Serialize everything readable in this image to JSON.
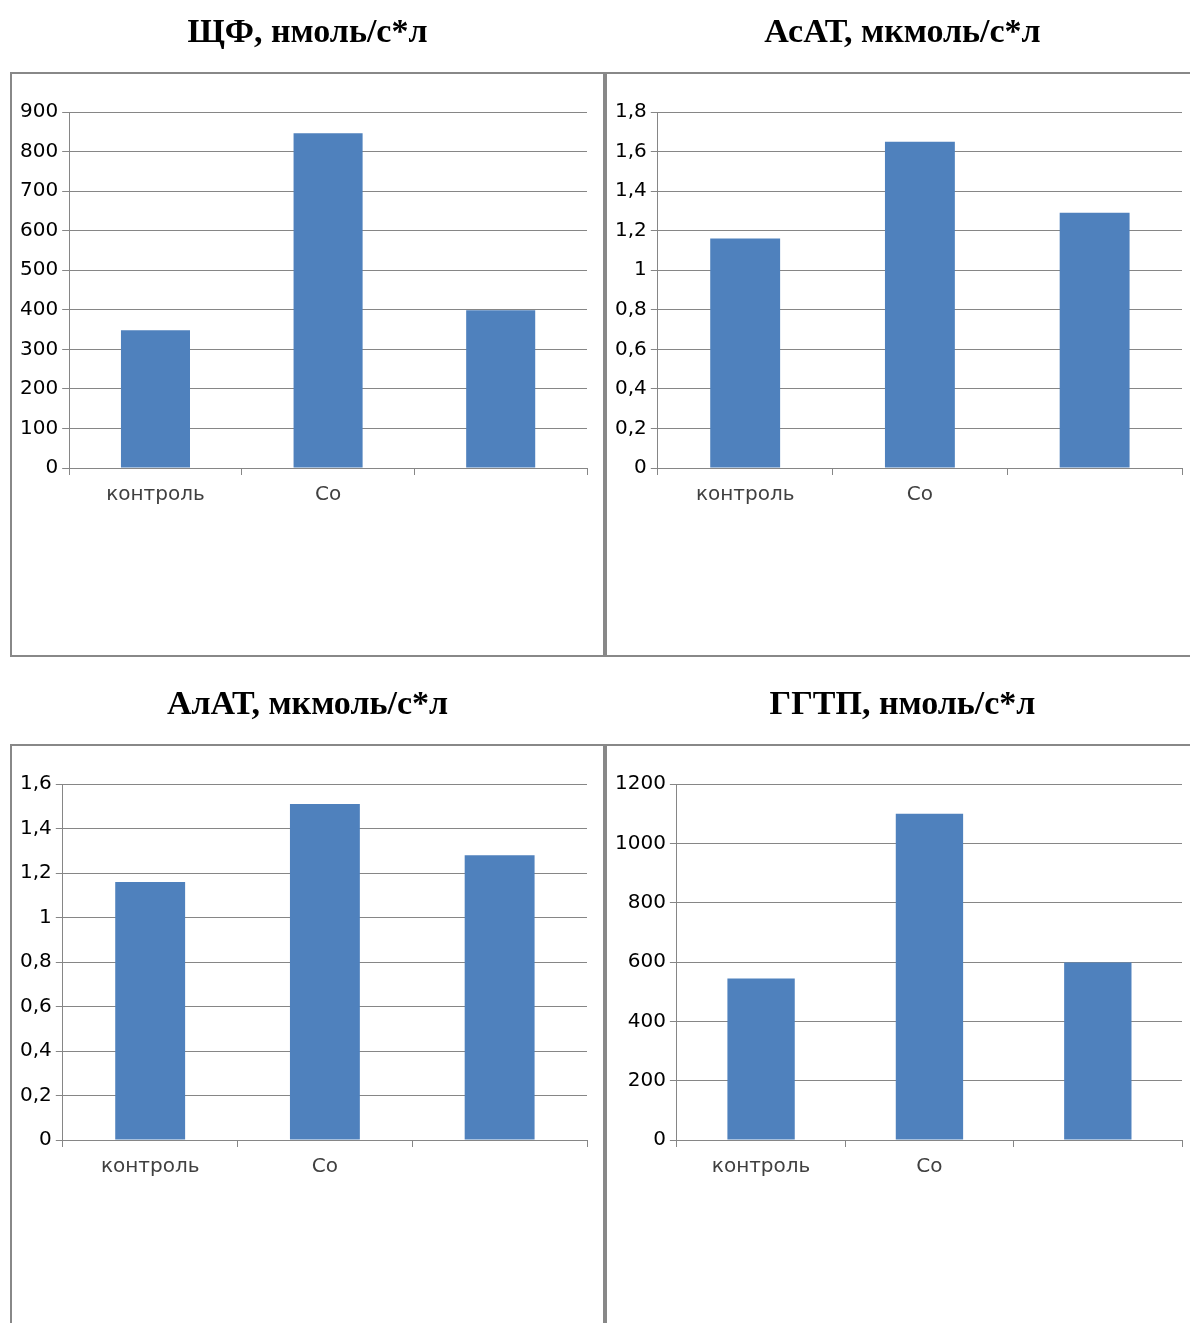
{
  "chart_data": [
    {
      "type": "bar",
      "title": "ЩФ, нмоль/с*л",
      "categories": [
        "контроль",
        "Со",
        null
      ],
      "values": [
        348,
        846,
        399
      ],
      "color": "#4f81bd",
      "ylim": [
        0,
        900
      ],
      "yticks": [
        0,
        100,
        200,
        300,
        400,
        500,
        600,
        700,
        800,
        900
      ],
      "grid": "y"
    },
    {
      "type": "bar",
      "title": "АсАТ, мкмоль/с*л",
      "categories": [
        "контроль",
        "Со",
        null
      ],
      "values": [
        1.16,
        1.65,
        1.29
      ],
      "color": "#4f81bd",
      "ylim": [
        0,
        1.8
      ],
      "yticks": [
        0,
        {
          "value": 0.2,
          "label": "0,2"
        },
        {
          "value": 0.4,
          "label": "0,4"
        },
        {
          "value": 0.6,
          "label": "0,6"
        },
        {
          "value": 0.8,
          "label": "0,8"
        },
        1,
        {
          "value": 1.2,
          "label": "1,2"
        },
        {
          "value": 1.4,
          "label": "1,4"
        },
        {
          "value": 1.6,
          "label": "1,6"
        },
        {
          "value": 1.8,
          "label": "1,8"
        }
      ],
      "grid": "y"
    },
    {
      "type": "bar",
      "title": "АлАТ, мкмоль/с*л",
      "categories": [
        "контроль",
        "Со",
        null
      ],
      "values": [
        1.16,
        1.51,
        1.28
      ],
      "color": "#4f81bd",
      "ylim": [
        0,
        1.6
      ],
      "yticks": [
        0,
        {
          "value": 0.2,
          "label": "0,2"
        },
        {
          "value": 0.4,
          "label": "0,4"
        },
        {
          "value": 0.6,
          "label": "0,6"
        },
        {
          "value": 0.8,
          "label": "0,8"
        },
        1,
        {
          "value": 1.2,
          "label": "1,2"
        },
        {
          "value": 1.4,
          "label": "1,4"
        },
        {
          "value": 1.6,
          "label": "1,6"
        }
      ],
      "grid": "y"
    },
    {
      "type": "bar",
      "title": "ГГТП, нмоль/с*л",
      "categories": [
        "контроль",
        "Со",
        null
      ],
      "values": [
        544,
        1100,
        598
      ],
      "color": "#4f81bd",
      "ylim": [
        0,
        1200
      ],
      "yticks": [
        0,
        200,
        400,
        600,
        800,
        1000,
        1200
      ],
      "grid": "y"
    }
  ]
}
